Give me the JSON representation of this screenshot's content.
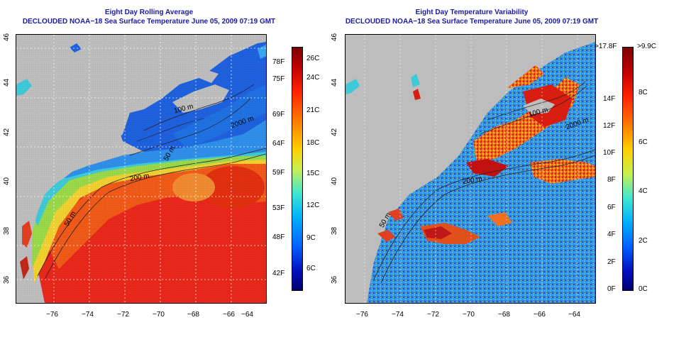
{
  "left": {
    "title": "Eight Day Rolling Average",
    "subtitle": "DECLOUDED NOAA−18 Sea Surface Temperature June 05, 2009 07:19 GMT",
    "y_ticks": [
      "46",
      "44",
      "42",
      "40",
      "38",
      "36"
    ],
    "x_ticks": [
      "−76",
      "−74",
      "−72",
      "−70",
      "−68",
      "−66",
      "−64"
    ],
    "f_labels": [
      "78F",
      "75F",
      "69F",
      "64F",
      "59F",
      "53F",
      "48F",
      "42F"
    ],
    "c_labels": [
      "26C",
      "24C",
      "21C",
      "18C",
      "15C",
      "12C",
      "9C",
      "6C"
    ],
    "contours": [
      "100 m",
      "2000 m",
      "50 m",
      "200 m",
      "50 m"
    ]
  },
  "right": {
    "title": "Eight Day Temperature Variability",
    "subtitle": "DECLOUDED NOAA−18 Sea Surface Temperature June 05, 2009 07:19 GMT",
    "y_ticks": [
      "46",
      "44",
      "42",
      "40",
      "38",
      "36"
    ],
    "x_ticks": [
      "−76",
      "−74",
      "−72",
      "−70",
      "−68",
      "−66",
      "−64"
    ],
    "f_labels": [
      ">17.8F",
      "14F",
      "12F",
      "10F",
      "8F",
      "6F",
      "4F",
      "2F",
      "0F"
    ],
    "c_labels": [
      ">9.9C",
      "8C",
      "6C",
      "4C",
      "2C",
      "0C"
    ],
    "contours": [
      "100 m",
      "2000 m",
      "200 m",
      "50 m"
    ]
  },
  "colors": {
    "land": "#bdbdbd",
    "title": "#1a1aa6"
  }
}
